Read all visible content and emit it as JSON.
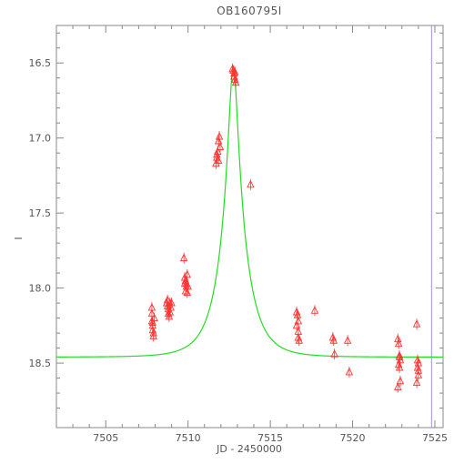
{
  "chart_data": {
    "type": "scatter",
    "title": "OB160795I",
    "xlabel": "JD - 2450000",
    "ylabel": "I",
    "xlim": [
      7502.0,
      7525.5
    ],
    "ylim": [
      18.93,
      16.25
    ],
    "y_inverted": true,
    "grid": false,
    "x_ticks": [
      "7505",
      "7510",
      "7515",
      "7520",
      "7525"
    ],
    "x_tick_values": [
      7505,
      7510,
      7515,
      7520,
      7525
    ],
    "y_ticks": [
      "16.5",
      "17.0",
      "17.5",
      "18.0",
      "18.5"
    ],
    "y_tick_values": [
      16.5,
      17.0,
      17.5,
      18.0,
      18.5
    ],
    "model_curve": {
      "color": "#22dd22",
      "peak_x": 7512.75,
      "peak_y": 16.52,
      "baseline_y": 18.46,
      "half_width": 0.95
    },
    "vertical_line": {
      "x": 7524.8,
      "color": "#9999dd"
    },
    "series": [
      {
        "color": "#ff3333",
        "marker": "triangle",
        "x": [
          7507.8,
          7507.8,
          7507.85,
          7507.85,
          7507.9,
          7507.9,
          7507.95,
          7507.8,
          7507.85,
          7508.7,
          7508.75,
          7508.8,
          7508.8,
          7508.85,
          7508.9,
          7508.9,
          7508.95,
          7509.0,
          7508.75,
          7509.75,
          7509.8,
          7509.8,
          7509.85,
          7509.9,
          7509.95,
          7509.95,
          7510.0,
          7509.85,
          7509.9,
          7511.7,
          7511.75,
          7511.8,
          7511.85,
          7511.9,
          7511.95,
          7511.75,
          7511.85,
          7512.7,
          7512.75,
          7512.8,
          7512.85,
          7512.9,
          7512.8,
          7512.85,
          7513.8,
          7516.6,
          7516.65,
          7516.7,
          7516.7,
          7516.75,
          7516.6,
          7516.7,
          7517.7,
          7518.8,
          7518.85,
          7518.9,
          7519.7,
          7519.8,
          7522.75,
          7522.8,
          7522.85,
          7522.9,
          7522.8,
          7522.85,
          7522.9,
          7522.75,
          7522.85,
          7523.9,
          7523.95,
          7524.0,
          7523.95,
          7524.0,
          7524.0,
          7523.9
        ],
        "y": [
          18.17,
          18.22,
          18.25,
          18.28,
          18.3,
          18.32,
          18.2,
          18.13,
          18.23,
          18.1,
          18.12,
          18.14,
          18.17,
          18.19,
          18.1,
          18.16,
          18.13,
          18.1,
          18.08,
          17.8,
          17.93,
          17.97,
          17.95,
          17.99,
          18.03,
          17.91,
          17.99,
          18.02,
          17.97,
          17.17,
          17.13,
          17.09,
          17.02,
          16.99,
          17.06,
          17.11,
          17.15,
          16.54,
          16.55,
          16.57,
          16.61,
          16.63,
          16.59,
          16.56,
          17.31,
          18.16,
          18.18,
          18.22,
          18.29,
          18.35,
          18.25,
          18.33,
          18.15,
          18.33,
          18.35,
          18.44,
          18.35,
          18.56,
          18.34,
          18.37,
          18.45,
          18.48,
          18.51,
          18.53,
          18.62,
          18.66,
          18.46,
          18.24,
          18.48,
          18.5,
          18.53,
          18.55,
          18.58,
          18.63
        ]
      }
    ]
  }
}
